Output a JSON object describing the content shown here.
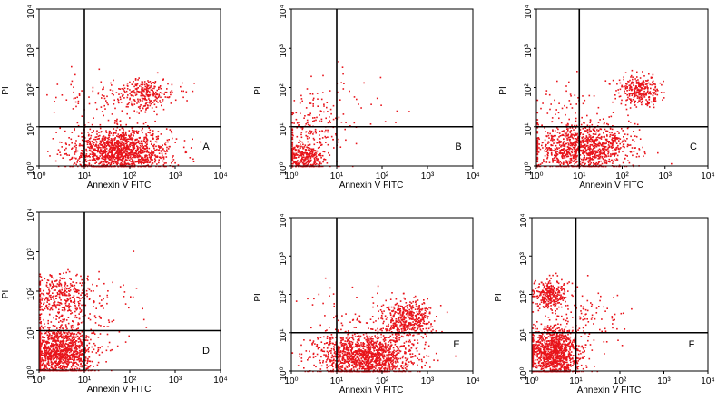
{
  "chart_data": {
    "type": "scatter",
    "x_axis": {
      "label": "Annexin V FITC",
      "scale": "log",
      "range": [
        1,
        10000
      ],
      "tick_labels": [
        "10⁰",
        "10¹",
        "10²",
        "10³",
        "10⁴"
      ]
    },
    "y_axis": {
      "label": "PI",
      "scale": "log",
      "range": [
        1,
        10000
      ],
      "tick_labels": [
        "10⁰",
        "10¹",
        "10²",
        "10³",
        "10⁴"
      ]
    },
    "point_color": "#e8141b",
    "gridlines": false,
    "panels": [
      {
        "label": "A",
        "quadrant_gate": {
          "x": 10,
          "y": 10
        },
        "populations": [
          {
            "x_center": 60,
            "y_center": 2.5,
            "x_spread": 0.55,
            "y_spread": 0.3,
            "count": 1400
          },
          {
            "x_center": 200,
            "y_center": 70,
            "x_spread": 0.35,
            "y_spread": 0.2,
            "count": 300
          },
          {
            "x_center": 10,
            "y_center": 60,
            "x_spread": 0.5,
            "y_spread": 0.3,
            "count": 50
          }
        ]
      },
      {
        "label": "B",
        "quadrant_gate": {
          "x": 10,
          "y": 10
        },
        "populations": [
          {
            "x_center": 1.8,
            "y_center": 1.6,
            "x_spread": 0.22,
            "y_spread": 0.2,
            "count": 300
          },
          {
            "x_center": 3,
            "y_center": 8,
            "x_spread": 0.4,
            "y_spread": 0.5,
            "count": 200
          },
          {
            "x_center": 40,
            "y_center": 40,
            "x_spread": 0.6,
            "y_spread": 0.5,
            "count": 30
          }
        ]
      },
      {
        "label": "C",
        "quadrant_gate": {
          "x": 10,
          "y": 10
        },
        "populations": [
          {
            "x_center": 12,
            "y_center": 3,
            "x_spread": 0.55,
            "y_spread": 0.3,
            "count": 1100
          },
          {
            "x_center": 250,
            "y_center": 90,
            "x_spread": 0.25,
            "y_spread": 0.18,
            "count": 300
          },
          {
            "x_center": 5,
            "y_center": 40,
            "x_spread": 0.4,
            "y_spread": 0.35,
            "count": 60
          }
        ]
      },
      {
        "label": "D",
        "quadrant_gate": {
          "x": 10,
          "y": 10
        },
        "populations": [
          {
            "x_center": 3,
            "y_center": 3,
            "x_spread": 0.35,
            "y_spread": 0.35,
            "count": 1200
          },
          {
            "x_center": 3,
            "y_center": 80,
            "x_spread": 0.3,
            "y_spread": 0.28,
            "count": 350
          },
          {
            "x_center": 20,
            "y_center": 30,
            "x_spread": 0.6,
            "y_spread": 0.5,
            "count": 80
          }
        ]
      },
      {
        "label": "E",
        "quadrant_gate": {
          "x": 10,
          "y": 10
        },
        "populations": [
          {
            "x_center": 40,
            "y_center": 2.5,
            "x_spread": 0.55,
            "y_spread": 0.3,
            "count": 1400
          },
          {
            "x_center": 350,
            "y_center": 25,
            "x_spread": 0.28,
            "y_spread": 0.22,
            "count": 450
          },
          {
            "x_center": 20,
            "y_center": 30,
            "x_spread": 0.6,
            "y_spread": 0.4,
            "count": 60
          }
        ]
      },
      {
        "label": "F",
        "quadrant_gate": {
          "x": 10,
          "y": 10
        },
        "populations": [
          {
            "x_center": 3,
            "y_center": 3,
            "x_spread": 0.3,
            "y_spread": 0.35,
            "count": 1100
          },
          {
            "x_center": 2.5,
            "y_center": 100,
            "x_spread": 0.2,
            "y_spread": 0.2,
            "count": 300
          },
          {
            "x_center": 15,
            "y_center": 20,
            "x_spread": 0.45,
            "y_spread": 0.4,
            "count": 100
          }
        ]
      }
    ]
  }
}
